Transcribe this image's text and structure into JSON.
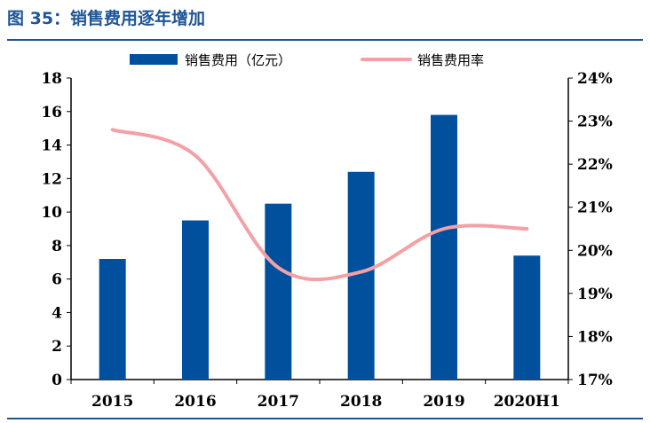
{
  "header": {
    "title": "图 35：销售费用逐年增加"
  },
  "chart_data": {
    "type": "bar",
    "categories": [
      "2015",
      "2016",
      "2017",
      "2018",
      "2019",
      "2020H1"
    ],
    "series": [
      {
        "name": "销售费用（亿元）",
        "type": "bar",
        "axis": "left",
        "values": [
          7.2,
          9.5,
          10.5,
          12.4,
          15.8,
          7.4
        ],
        "color": "#00509e"
      },
      {
        "name": "销售费用率",
        "type": "line",
        "axis": "right",
        "values": [
          22.8,
          22.2,
          19.6,
          19.5,
          20.5,
          20.5
        ],
        "color": "#f4a1a6"
      }
    ],
    "y_left": {
      "ylim": [
        0,
        18
      ],
      "ticks": [
        "0",
        "2",
        "4",
        "6",
        "8",
        "10",
        "12",
        "14",
        "16",
        "18"
      ]
    },
    "y_right": {
      "ylim": [
        17,
        24
      ],
      "ticks": [
        "17%",
        "18%",
        "19%",
        "20%",
        "21%",
        "22%",
        "23%",
        "24%"
      ]
    },
    "xlabel": "",
    "ylabel": "",
    "grid": false,
    "legend": "top-center"
  }
}
